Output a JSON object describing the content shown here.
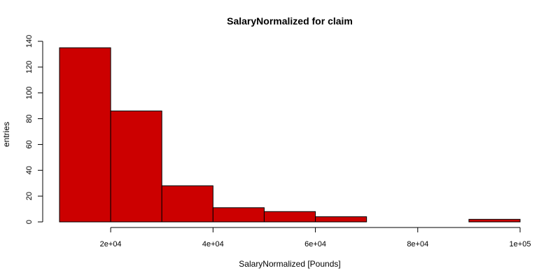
{
  "chart_data": {
    "type": "bar",
    "title": "SalaryNormalized for claim",
    "xlabel": "SalaryNormalized [Pounds]",
    "ylabel": "entries",
    "bin_edges": [
      10000,
      20000,
      30000,
      40000,
      50000,
      60000,
      70000,
      80000,
      90000,
      100000
    ],
    "values": [
      135,
      86,
      28,
      11,
      8,
      4,
      0,
      0,
      2
    ],
    "xlim": [
      10000,
      100000
    ],
    "ylim": [
      0,
      140
    ],
    "x_ticks": [
      20000,
      40000,
      60000,
      80000,
      100000
    ],
    "x_tick_labels": [
      "2e+04",
      "4e+04",
      "6e+04",
      "8e+04",
      "1e+05"
    ],
    "y_ticks": [
      0,
      20,
      40,
      60,
      80,
      100,
      120,
      140
    ],
    "y_tick_labels": [
      "0",
      "20",
      "40",
      "60",
      "80",
      "100",
      "120",
      "140"
    ],
    "bar_color": "#cc0000",
    "grid": false,
    "legend": "none"
  }
}
